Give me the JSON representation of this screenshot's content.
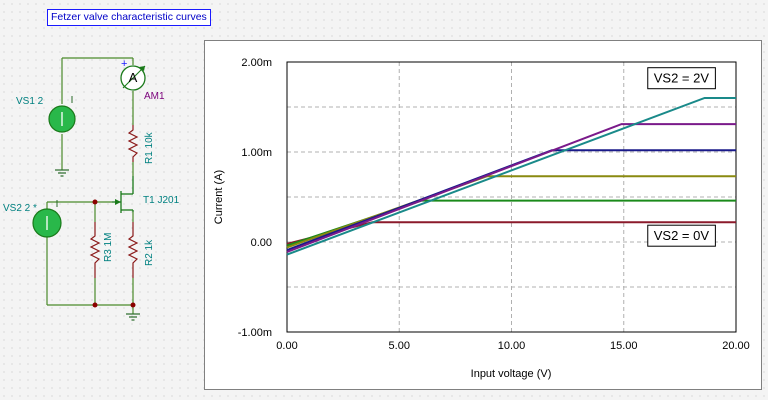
{
  "title": "Fetzer valve characteristic curves",
  "schematic": {
    "vs1_label": "VS1 2",
    "vs2_label": "VS2 2 *",
    "ammeter_symbol": "A",
    "ammeter_label": "AM1",
    "r1_label": "R1 10k",
    "r2_label": "R2 1k",
    "r3_label": "R3 1M",
    "t1_label": "T1  J201",
    "plus_sign": "+"
  },
  "colors": {
    "wire": "#4a8a2a",
    "component": "#1a9a1a",
    "source_fill": "#29b84a",
    "label_teal": "#008080",
    "label_purple": "#7a007a",
    "node": "#8b0000",
    "grid": "#b0b0b0"
  },
  "chart_data": {
    "type": "line",
    "title": "",
    "xlabel": "Input voltage (V)",
    "ylabel": "Current (A)",
    "xlim": [
      0,
      20
    ],
    "ylim": [
      -1.0,
      2.0
    ],
    "x_ticks": [
      "0.00",
      "5.00",
      "10.00",
      "15.00",
      "20.00"
    ],
    "y_ticks": [
      "-1.00m",
      "0.00",
      "1.00m",
      "2.00m"
    ],
    "grid": true,
    "annotations": [
      {
        "text": "VS2 = 2V",
        "x": 18.8,
        "y": 1.77
      },
      {
        "text": "VS2 = 0V",
        "x": 18.8,
        "y": 0.02
      }
    ],
    "series": [
      {
        "color": "#8b1a2b",
        "points": [
          [
            0,
            -0.02
          ],
          [
            3.8,
            0.22
          ],
          [
            20,
            0.22
          ]
        ]
      },
      {
        "color": "#1a8a1a",
        "points": [
          [
            0,
            -0.04
          ],
          [
            6.0,
            0.46
          ],
          [
            20,
            0.46
          ]
        ]
      },
      {
        "color": "#8a8a10",
        "points": [
          [
            0,
            -0.06
          ],
          [
            8.9,
            0.73
          ],
          [
            20,
            0.73
          ]
        ]
      },
      {
        "color": "#1a1a8a",
        "points": [
          [
            0,
            -0.09
          ],
          [
            11.8,
            1.02
          ],
          [
            20,
            1.02
          ]
        ]
      },
      {
        "color": "#7a1a8a",
        "points": [
          [
            0,
            -0.11
          ],
          [
            14.9,
            1.31
          ],
          [
            20,
            1.31
          ]
        ]
      },
      {
        "color": "#1a8a8a",
        "points": [
          [
            0,
            -0.14
          ],
          [
            18.6,
            1.6
          ],
          [
            20,
            1.6
          ]
        ]
      }
    ]
  }
}
